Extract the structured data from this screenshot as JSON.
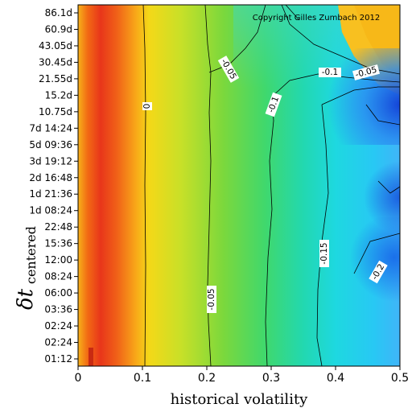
{
  "chart_data": {
    "type": "heatmap",
    "xlabel": "historical volatility",
    "ylabel_main": "δt",
    "ylabel_sub": "centered",
    "x_ticks": [
      "0",
      "0.1",
      "0.2",
      "0.3",
      "0.4",
      "0.5"
    ],
    "x_tick_values": [
      0,
      0.1,
      0.2,
      0.3,
      0.4,
      0.5
    ],
    "xlim": [
      0,
      0.5
    ],
    "y_ticks": [
      "01:12",
      "02:24",
      "02:24",
      "03:36",
      "06:00",
      "08:24",
      "12:00",
      "15:36",
      "22:48",
      "1d 08:24",
      "1d 21:36",
      "2d 16:48",
      "3d 19:12",
      "5d 09:36",
      "7d 14:24",
      "10.75d",
      "15.2d",
      "21.55d",
      "30.45d",
      "43.05d",
      "60.9d",
      "86.1d"
    ],
    "copyright": "Copyright Gilles Zumbach 2012",
    "contour_labels": [
      "0",
      "-0.05",
      "-0.05",
      "-0.1",
      "-0.1",
      "-0.05",
      "-0.15",
      "-0.2",
      "-0.15",
      "-0.2"
    ],
    "colors": {
      "red": "#e83a10",
      "orange": "#f58a14",
      "yellow": "#f4e018",
      "green": "#5ad84a",
      "cyan": "#22d8ec",
      "blue": "#1a64e6"
    }
  }
}
